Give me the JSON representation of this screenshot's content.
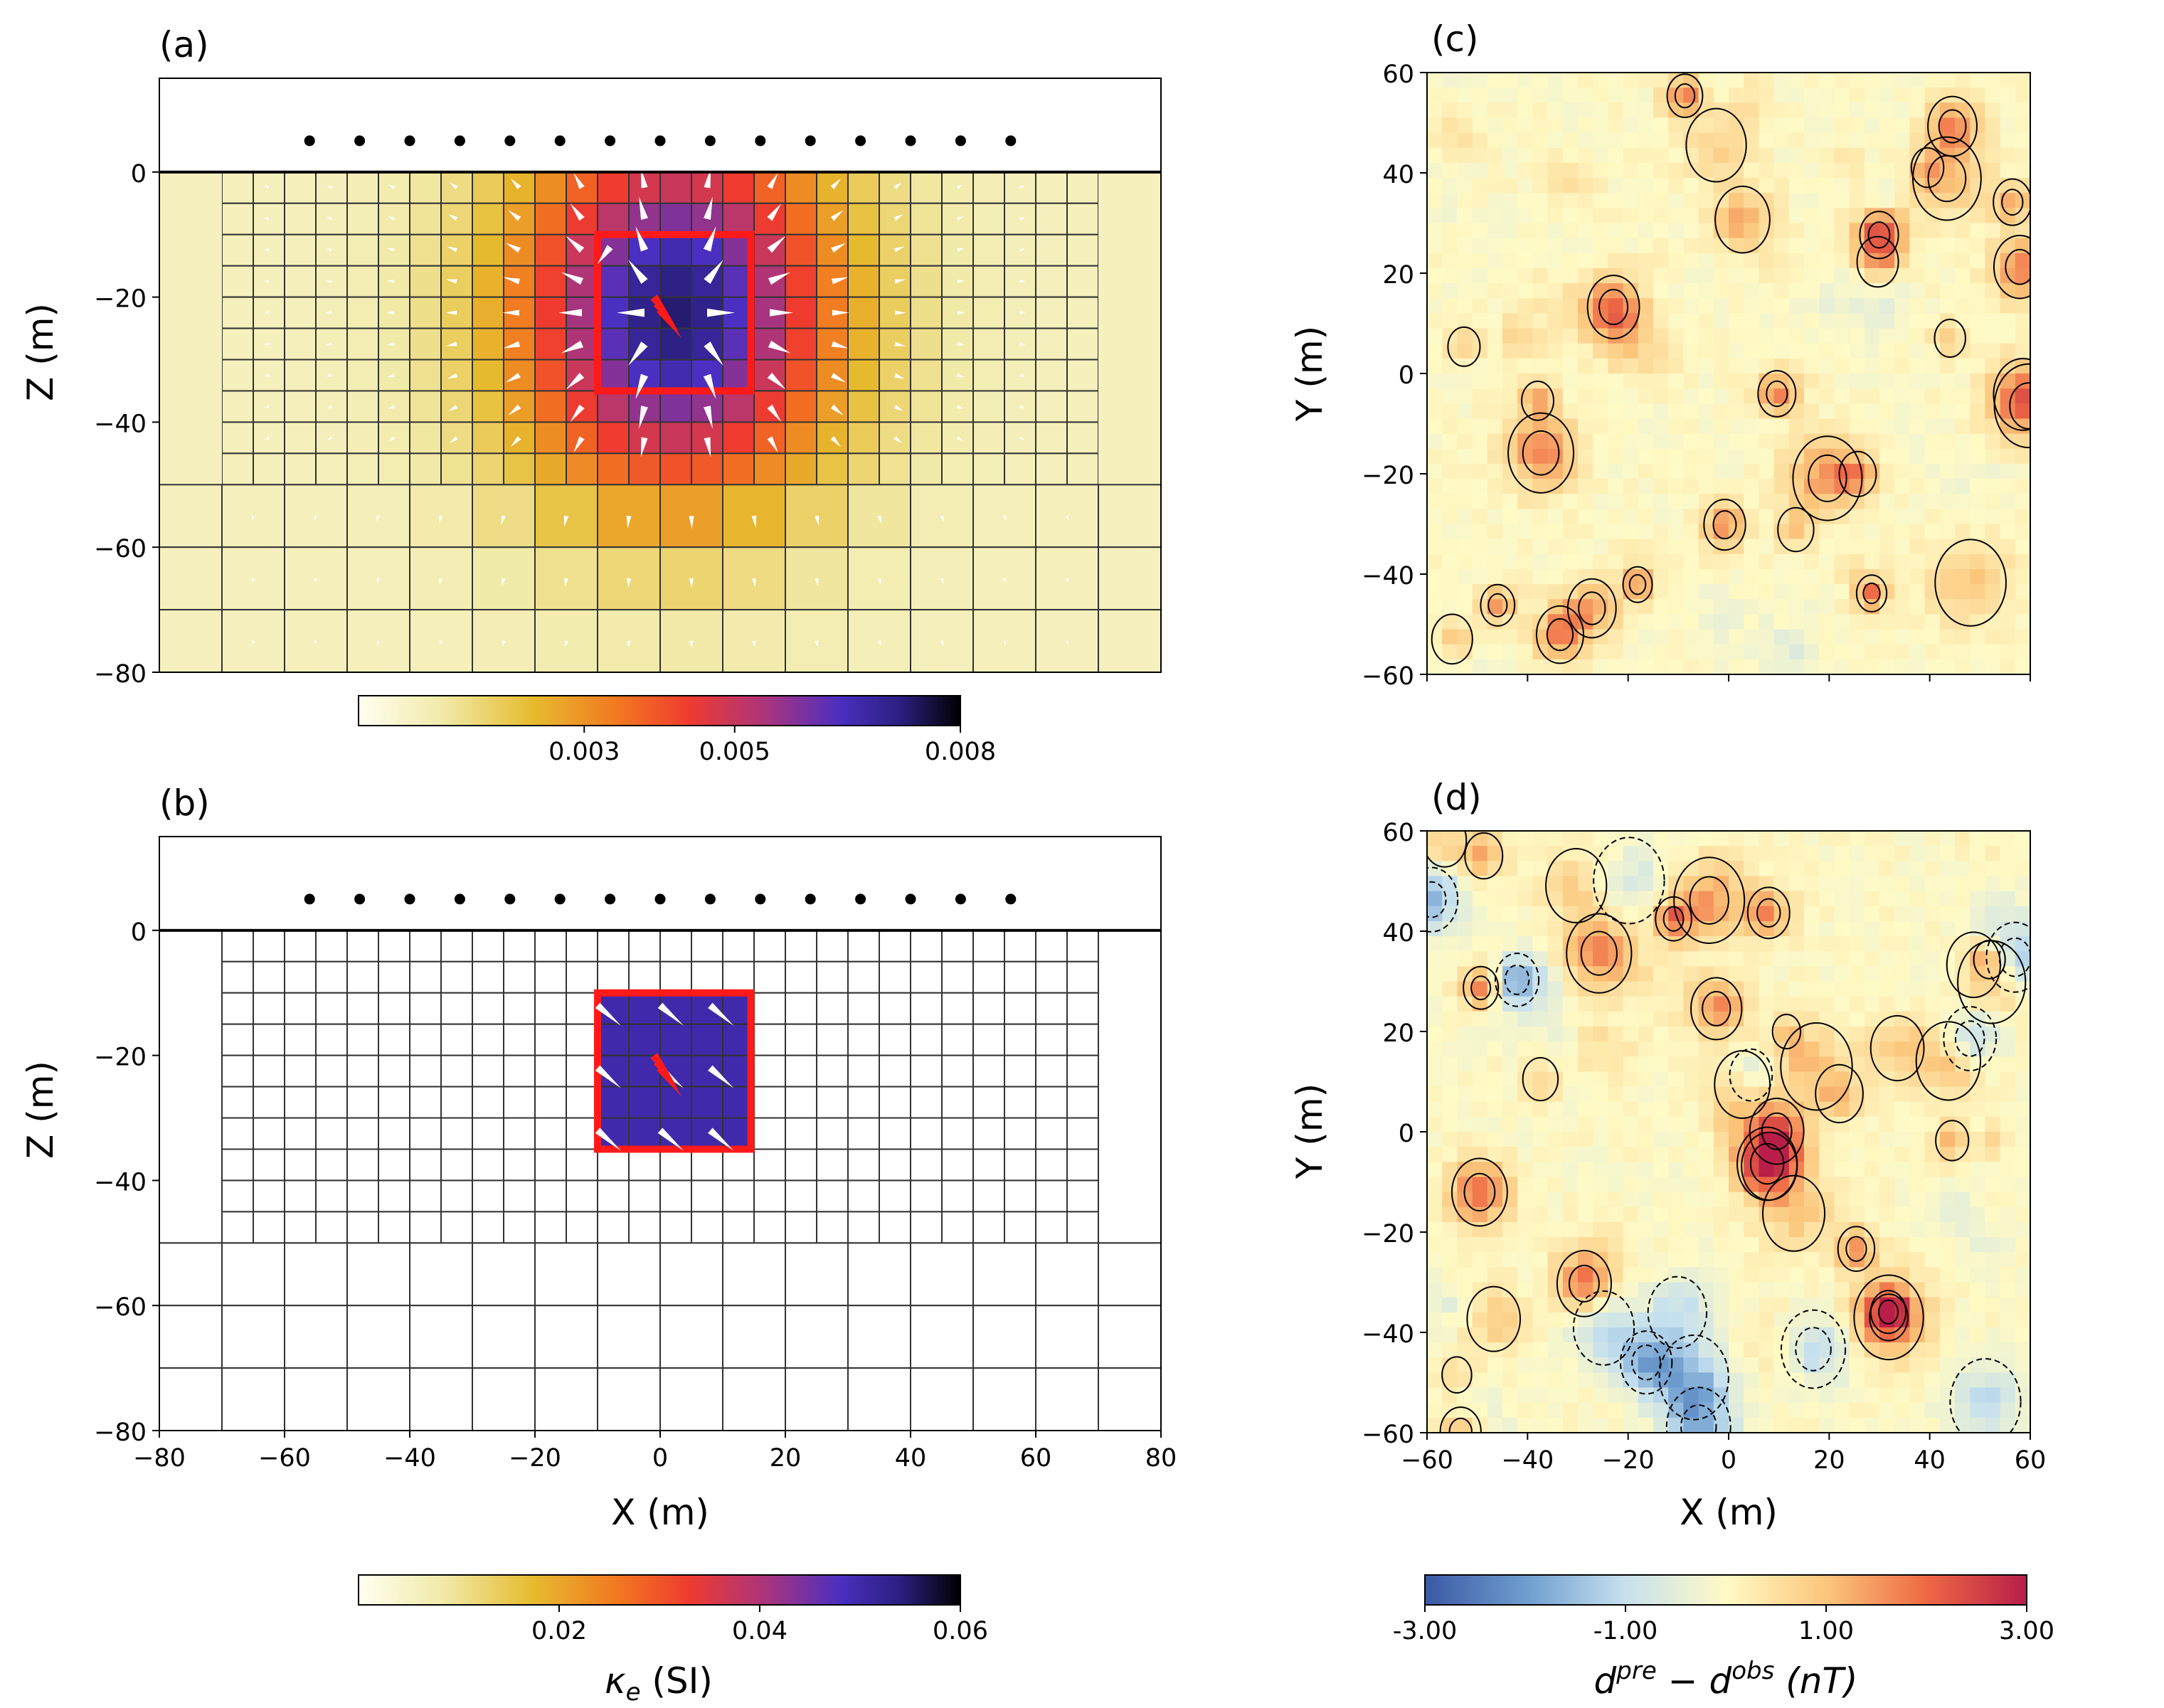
{
  "figure": {
    "panels": {
      "a": {
        "label": "(a)",
        "ylabel": "Z (m)"
      },
      "b": {
        "label": "(b)",
        "ylabel": "Z (m)",
        "xlabel": "X (m)"
      },
      "c": {
        "label": "(c)",
        "ylabel": "Y (m)"
      },
      "d": {
        "label": "(d)",
        "ylabel": "Y (m)",
        "xlabel": "X (m)"
      }
    },
    "colorbars": {
      "a": {
        "ticks": [
          "0.003",
          "0.005",
          "0.008"
        ]
      },
      "b": {
        "ticks": [
          "0.02",
          "0.04",
          "0.06"
        ],
        "label_sym": "κ",
        "label_sub": "e",
        "label_rest": " (SI)"
      },
      "d": {
        "ticks": [
          "-3.00",
          "-1.00",
          "1.00",
          "3.00"
        ],
        "label_d1": "d",
        "label_sup1": "pre",
        "label_mid": " − d",
        "label_sup2": "obs",
        "label_unit": " (nT)"
      }
    }
  },
  "colors": {
    "box": "#ff1a1a",
    "arrow_a": "#ffffff",
    "arrow_red": "#ff1a1a",
    "receiver": "#000000"
  },
  "chart_data": [
    {
      "type": "heatmap",
      "panel": "a",
      "description": "recovered effective susceptibility cross-section with magnetization arrows",
      "xlabel": "",
      "ylabel": "Z (m)",
      "xlim": [
        -80,
        80
      ],
      "ylim": [
        -80,
        15
      ],
      "xticks": [],
      "yticks": [
        0,
        -20,
        -40,
        -60,
        -80
      ],
      "colorbar": {
        "range": [
          0,
          0.008
        ],
        "ticks": [
          0.003,
          0.005,
          0.008
        ]
      },
      "receivers_x": [
        -56,
        -48,
        -40,
        -32,
        -24,
        -16,
        -8,
        0,
        8,
        16,
        24,
        32,
        40,
        48,
        56
      ],
      "receiver_z": 5,
      "block": {
        "x": [
          -10,
          14.5
        ],
        "z": [
          -35,
          -10
        ]
      },
      "peak_center": [
        2.5,
        -22.5
      ],
      "peak_value": 0.0065
    },
    {
      "type": "heatmap",
      "panel": "b",
      "description": "true model: uniform magnetized block",
      "xlabel": "X (m)",
      "ylabel": "Z (m)",
      "xlim": [
        -80,
        80
      ],
      "ylim": [
        -80,
        15
      ],
      "xticks": [
        -80,
        -60,
        -40,
        -20,
        0,
        20,
        40,
        60,
        80
      ],
      "yticks": [
        0,
        -20,
        -40,
        -60,
        -80
      ],
      "colorbar": {
        "range": [
          0,
          0.06
        ],
        "ticks": [
          0.02,
          0.04,
          0.06
        ],
        "label": "κe (SI)"
      },
      "block": {
        "x": [
          -10,
          14.5
        ],
        "z": [
          -35,
          -10
        ],
        "value": 0.05
      }
    },
    {
      "type": "heatmap",
      "panel": "c",
      "description": "data residual map for (a)",
      "xlabel": "",
      "ylabel": "Y (m)",
      "xlim": [
        -60,
        60
      ],
      "ylim": [
        -60,
        60
      ],
      "xticks": [],
      "yticks": [
        60,
        40,
        20,
        0,
        -20,
        -40,
        -60
      ],
      "colorbar": {
        "range": [
          -3,
          3
        ]
      }
    },
    {
      "type": "heatmap",
      "panel": "d",
      "description": "data residual map for (b)",
      "xlabel": "X (m)",
      "ylabel": "Y (m)",
      "xlim": [
        -60,
        60
      ],
      "ylim": [
        -60,
        60
      ],
      "xticks": [
        -60,
        -40,
        -20,
        0,
        20,
        40,
        60
      ],
      "yticks": [
        60,
        40,
        20,
        0,
        -20,
        -40,
        -60
      ],
      "colorbar": {
        "range": [
          -3,
          3
        ],
        "ticks": [
          -3,
          -1,
          1,
          3
        ],
        "label": "d^pre − d^obs (nT)"
      }
    }
  ]
}
